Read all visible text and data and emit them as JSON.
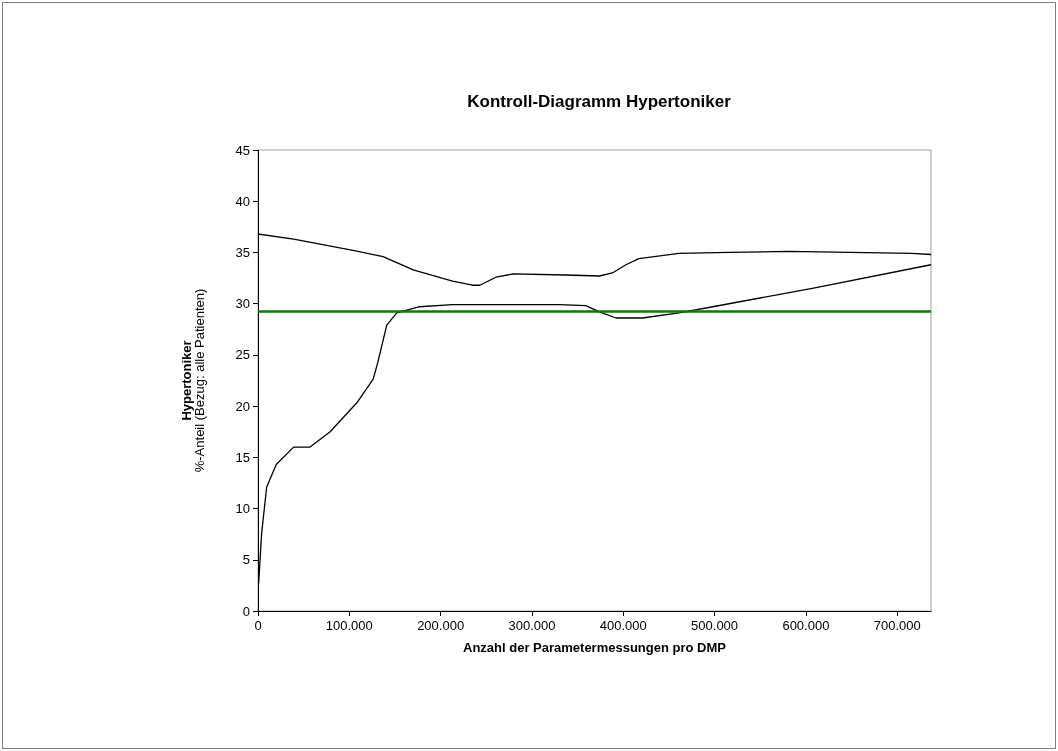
{
  "chart_data": {
    "type": "line",
    "title": "Kontroll-Diagramm Hypertoniker",
    "xlabel": "Anzahl der Parametermessungen pro DMP",
    "ylabel": "Hypertoniker\n%-Anteil (Bezug: alle Patienten)",
    "series": [
      {
        "color": "#000000",
        "x": [
          0,
          39000,
          104000,
          137000,
          170000,
          213000,
          235000,
          243000,
          261000,
          279000,
          337000,
          374000,
          388000,
          403000,
          417000,
          461000,
          516000,
          581000,
          716000,
          737000
        ],
        "values": [
          36.8,
          36.3,
          35.2,
          34.6,
          33.3,
          32.2,
          31.8,
          31.8,
          32.6,
          32.9,
          32.8,
          32.7,
          33.0,
          33.8,
          34.4,
          34.9,
          35.0,
          35.1,
          34.9,
          34.8
        ]
      },
      {
        "color": "#000000",
        "x": [
          700,
          4000,
          9500,
          20000,
          39000,
          57000,
          79000,
          108000,
          126000,
          131000,
          141000,
          152000,
          177000,
          213000,
          283000,
          330000,
          359000,
          374000,
          392000,
          421000,
          461000,
          498000,
          607000,
          737000
        ],
        "values": [
          2.7,
          7.6,
          12.1,
          14.3,
          16.0,
          16.0,
          17.5,
          20.3,
          22.6,
          24.2,
          27.9,
          29.1,
          29.7,
          29.9,
          29.9,
          29.9,
          29.8,
          29.2,
          28.6,
          28.6,
          29.1,
          29.7,
          31.5,
          33.8
        ]
      }
    ],
    "ref_lines": [
      {
        "axis": "y",
        "value": 29.3,
        "color": "#008000",
        "line_style": "solid"
      }
    ],
    "xlim": [
      0,
      737000
    ],
    "xticks": [
      0,
      {
        "value": 100000,
        "label": "100.000"
      },
      {
        "value": 200000,
        "label": "200.000"
      },
      {
        "value": 300000,
        "label": "300.000"
      },
      {
        "value": 400000,
        "label": "400.000"
      },
      {
        "value": 500000,
        "label": "500.000"
      },
      {
        "value": 600000,
        "label": "600.000"
      },
      {
        "value": 700000,
        "label": "700.000"
      }
    ],
    "ylim": [
      0,
      45
    ],
    "yticks": [
      0,
      5,
      10,
      15,
      20,
      25,
      30,
      35,
      40,
      45
    ],
    "grid": false,
    "marker": "none",
    "line_style": "solid"
  }
}
